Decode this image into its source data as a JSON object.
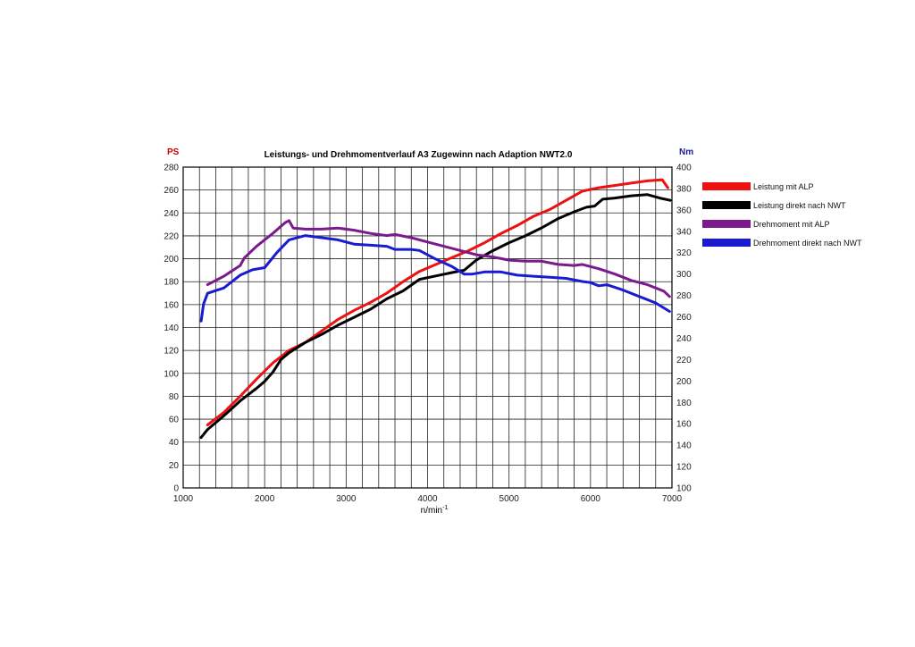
{
  "chart_data": {
    "type": "line",
    "title": "Leistungs- und Drehmomentverlauf A3 Zugewinn nach Adaption NWT2.0",
    "xlabel": "n/min",
    "xlabel_sup": "-1",
    "ylabel_left": "PS",
    "ylabel_right": "Nm",
    "xlim": [
      1000,
      7000
    ],
    "ylim_left": [
      0,
      280
    ],
    "ylim_right": [
      100,
      400
    ],
    "x_ticks": [
      1000,
      2000,
      3000,
      4000,
      5000,
      6000,
      7000
    ],
    "y_left_ticks": [
      0,
      20,
      40,
      60,
      80,
      100,
      120,
      140,
      160,
      180,
      200,
      220,
      240,
      260,
      280
    ],
    "y_right_ticks": [
      100,
      120,
      140,
      160,
      180,
      200,
      220,
      240,
      260,
      280,
      300,
      320,
      340,
      360,
      380,
      400
    ],
    "grid": true,
    "legend_position": "right",
    "series": [
      {
        "name": "Leistung mit ALP",
        "axis": "left",
        "color": "#ee1111",
        "points": [
          [
            1300,
            55
          ],
          [
            1500,
            66
          ],
          [
            1700,
            80
          ],
          [
            1900,
            95
          ],
          [
            2100,
            109
          ],
          [
            2300,
            120
          ],
          [
            2500,
            127
          ],
          [
            2700,
            137
          ],
          [
            2900,
            147
          ],
          [
            3100,
            155
          ],
          [
            3300,
            162
          ],
          [
            3500,
            170
          ],
          [
            3700,
            180
          ],
          [
            3900,
            189
          ],
          [
            4100,
            195
          ],
          [
            4300,
            201
          ],
          [
            4500,
            207
          ],
          [
            4700,
            214
          ],
          [
            4900,
            222
          ],
          [
            5100,
            229
          ],
          [
            5300,
            237
          ],
          [
            5500,
            243
          ],
          [
            5700,
            251
          ],
          [
            5900,
            259
          ],
          [
            6100,
            262
          ],
          [
            6300,
            264
          ],
          [
            6500,
            266
          ],
          [
            6700,
            268
          ],
          [
            6880,
            269
          ],
          [
            6950,
            262
          ]
        ]
      },
      {
        "name": "Leistung direkt nach NWT",
        "axis": "left",
        "color": "#000000",
        "points": [
          [
            1220,
            44
          ],
          [
            1300,
            51
          ],
          [
            1500,
            63
          ],
          [
            1700,
            76
          ],
          [
            1900,
            87
          ],
          [
            2000,
            93
          ],
          [
            2100,
            101
          ],
          [
            2200,
            112
          ],
          [
            2300,
            118
          ],
          [
            2500,
            127
          ],
          [
            2700,
            134
          ],
          [
            2900,
            142
          ],
          [
            3100,
            149
          ],
          [
            3300,
            156
          ],
          [
            3500,
            165
          ],
          [
            3700,
            172
          ],
          [
            3900,
            182
          ],
          [
            4100,
            185
          ],
          [
            4300,
            188
          ],
          [
            4450,
            190
          ],
          [
            4600,
            199
          ],
          [
            4800,
            207
          ],
          [
            5000,
            214
          ],
          [
            5200,
            220
          ],
          [
            5400,
            227
          ],
          [
            5600,
            235
          ],
          [
            5800,
            241
          ],
          [
            5950,
            245
          ],
          [
            6050,
            246
          ],
          [
            6150,
            252
          ],
          [
            6300,
            253
          ],
          [
            6500,
            255
          ],
          [
            6700,
            256
          ],
          [
            6850,
            253
          ],
          [
            6980,
            251
          ]
        ]
      },
      {
        "name": "Drehmoment mit ALP",
        "axis": "right",
        "color": "#7a1a8c",
        "points": [
          [
            1300,
            290
          ],
          [
            1500,
            298
          ],
          [
            1700,
            308
          ],
          [
            1750,
            315
          ],
          [
            1900,
            326
          ],
          [
            2100,
            338
          ],
          [
            2250,
            348
          ],
          [
            2300,
            350
          ],
          [
            2350,
            343
          ],
          [
            2500,
            342
          ],
          [
            2700,
            342
          ],
          [
            2900,
            343
          ],
          [
            3100,
            341
          ],
          [
            3300,
            338
          ],
          [
            3500,
            336
          ],
          [
            3600,
            337
          ],
          [
            3800,
            334
          ],
          [
            4000,
            330
          ],
          [
            4200,
            326
          ],
          [
            4400,
            322
          ],
          [
            4600,
            318
          ],
          [
            4800,
            316
          ],
          [
            5000,
            313
          ],
          [
            5200,
            312
          ],
          [
            5400,
            312
          ],
          [
            5600,
            309
          ],
          [
            5800,
            308
          ],
          [
            5900,
            309
          ],
          [
            6100,
            305
          ],
          [
            6300,
            300
          ],
          [
            6500,
            294
          ],
          [
            6700,
            290
          ],
          [
            6900,
            284
          ],
          [
            6970,
            279
          ]
        ]
      },
      {
        "name": "Drehmoment direkt nach NWT",
        "axis": "right",
        "color": "#1a1ad0",
        "points": [
          [
            1220,
            256
          ],
          [
            1250,
            272
          ],
          [
            1300,
            282
          ],
          [
            1500,
            287
          ],
          [
            1700,
            299
          ],
          [
            1850,
            304
          ],
          [
            2000,
            306
          ],
          [
            2150,
            320
          ],
          [
            2300,
            332
          ],
          [
            2500,
            336
          ],
          [
            2700,
            334
          ],
          [
            2900,
            332
          ],
          [
            3100,
            328
          ],
          [
            3300,
            327
          ],
          [
            3500,
            326
          ],
          [
            3600,
            323
          ],
          [
            3800,
            323
          ],
          [
            3900,
            322
          ],
          [
            4100,
            314
          ],
          [
            4300,
            307
          ],
          [
            4450,
            300
          ],
          [
            4550,
            300
          ],
          [
            4700,
            302
          ],
          [
            4900,
            302
          ],
          [
            5100,
            299
          ],
          [
            5300,
            298
          ],
          [
            5500,
            297
          ],
          [
            5700,
            296
          ],
          [
            5900,
            293
          ],
          [
            6000,
            292
          ],
          [
            6100,
            289
          ],
          [
            6200,
            290
          ],
          [
            6400,
            285
          ],
          [
            6600,
            279
          ],
          [
            6800,
            273
          ],
          [
            6970,
            265
          ]
        ]
      }
    ]
  }
}
